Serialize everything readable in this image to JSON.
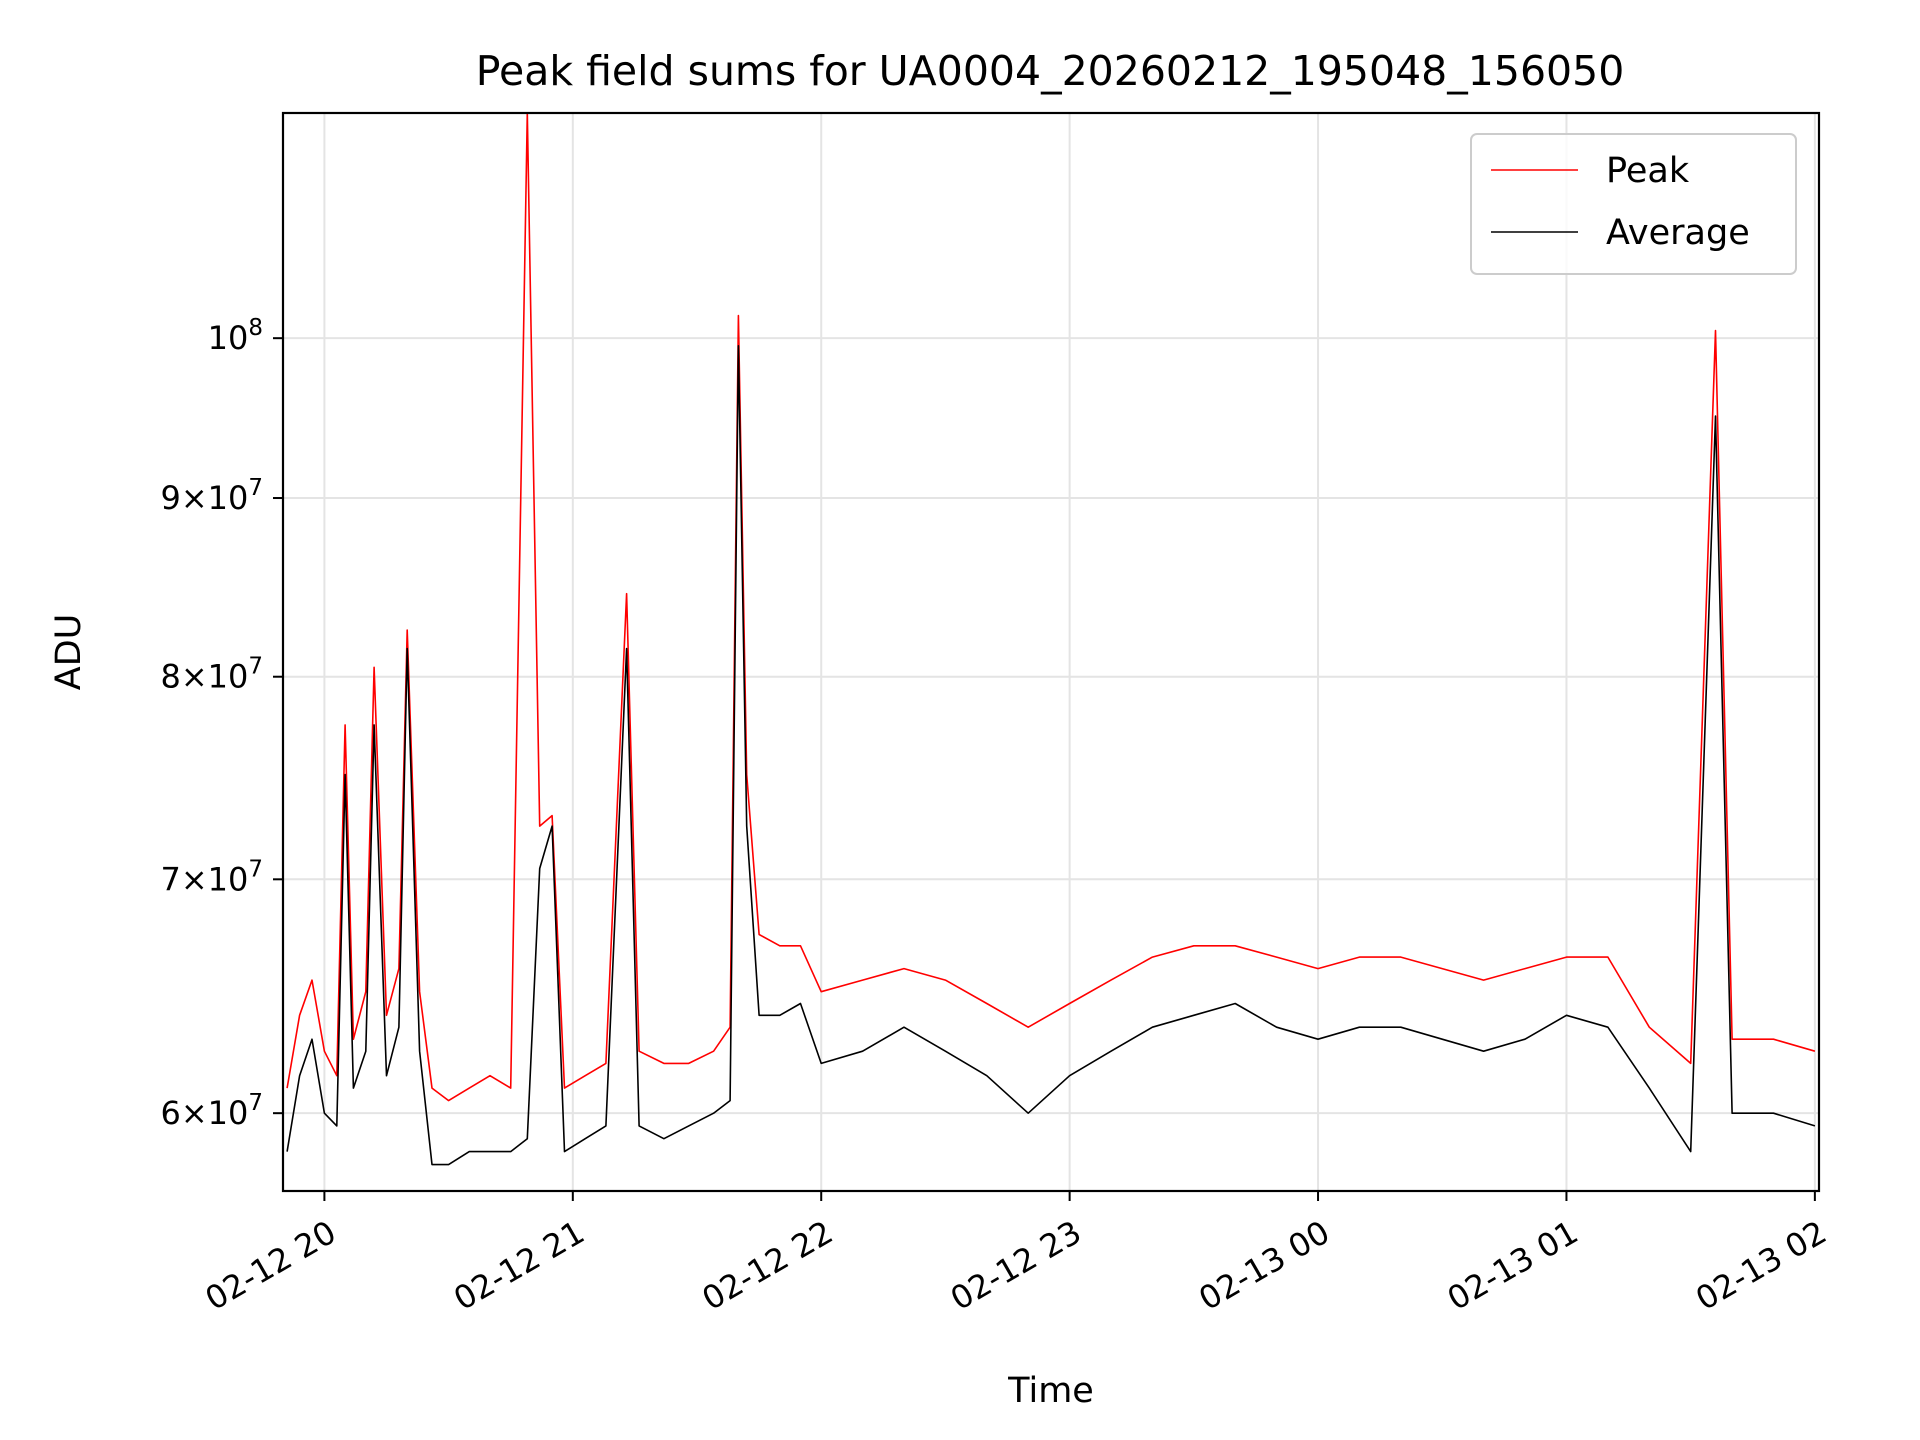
{
  "chart_data": {
    "type": "line",
    "title": "Peak field sums for UA0004_20260212_195048_156050",
    "xlabel": "Time",
    "ylabel": "ADU",
    "x_ticks": [
      "02-12 20",
      "02-12 21",
      "02-12 22",
      "02-12 23",
      "02-13 00",
      "02-13 01",
      "02-13 02"
    ],
    "y_ticks": [
      {
        "value": 60000000,
        "mantissa": "6",
        "exp": "7"
      },
      {
        "value": 70000000,
        "mantissa": "7",
        "exp": "7"
      },
      {
        "value": 80000000,
        "mantissa": "8",
        "exp": "7"
      },
      {
        "value": 90000000,
        "mantissa": "9",
        "exp": "7"
      },
      {
        "value": 100000000,
        "mantissa": "",
        "exp": "8"
      }
    ],
    "x_range": [
      "2026-02-12 19:50",
      "2026-02-13 02:01"
    ],
    "ylim": [
      57000000,
      116000000
    ],
    "y_scale": "log",
    "grid": true,
    "legend_position": "top-right",
    "series": [
      {
        "name": "Peak",
        "color": "#ff0000",
        "points": [
          [
            "2026-02-12 19:51",
            61000000
          ],
          [
            "2026-02-12 19:54",
            64000000
          ],
          [
            "2026-02-12 19:57",
            65500000
          ],
          [
            "2026-02-12 20:00",
            62500000
          ],
          [
            "2026-02-12 20:03",
            61500000
          ],
          [
            "2026-02-12 20:05",
            77500000
          ],
          [
            "2026-02-12 20:07",
            63000000
          ],
          [
            "2026-02-12 20:10",
            65000000
          ],
          [
            "2026-02-12 20:12",
            80500000
          ],
          [
            "2026-02-12 20:15",
            64000000
          ],
          [
            "2026-02-12 20:18",
            66000000
          ],
          [
            "2026-02-12 20:20",
            82500000
          ],
          [
            "2026-02-12 20:23",
            65000000
          ],
          [
            "2026-02-12 20:26",
            61000000
          ],
          [
            "2026-02-12 20:30",
            60500000
          ],
          [
            "2026-02-12 20:35",
            61000000
          ],
          [
            "2026-02-12 20:40",
            61500000
          ],
          [
            "2026-02-12 20:45",
            61000000
          ],
          [
            "2026-02-12 20:49",
            116000000
          ],
          [
            "2026-02-12 20:52",
            72500000
          ],
          [
            "2026-02-12 20:55",
            73000000
          ],
          [
            "2026-02-12 20:58",
            61000000
          ],
          [
            "2026-02-12 21:03",
            61500000
          ],
          [
            "2026-02-12 21:08",
            62000000
          ],
          [
            "2026-02-12 21:13",
            84500000
          ],
          [
            "2026-02-12 21:16",
            62500000
          ],
          [
            "2026-02-12 21:22",
            62000000
          ],
          [
            "2026-02-12 21:28",
            62000000
          ],
          [
            "2026-02-12 21:34",
            62500000
          ],
          [
            "2026-02-12 21:38",
            63500000
          ],
          [
            "2026-02-12 21:40",
            101500000
          ],
          [
            "2026-02-12 21:42",
            75000000
          ],
          [
            "2026-02-12 21:45",
            67500000
          ],
          [
            "2026-02-12 21:50",
            67000000
          ],
          [
            "2026-02-12 21:55",
            67000000
          ],
          [
            "2026-02-12 22:00",
            65000000
          ],
          [
            "2026-02-12 22:10",
            65500000
          ],
          [
            "2026-02-12 22:20",
            66000000
          ],
          [
            "2026-02-12 22:30",
            65500000
          ],
          [
            "2026-02-12 22:40",
            64500000
          ],
          [
            "2026-02-12 22:50",
            63500000
          ],
          [
            "2026-02-12 23:00",
            64500000
          ],
          [
            "2026-02-12 23:10",
            65500000
          ],
          [
            "2026-02-12 23:20",
            66500000
          ],
          [
            "2026-02-12 23:30",
            67000000
          ],
          [
            "2026-02-12 23:40",
            67000000
          ],
          [
            "2026-02-12 23:50",
            66500000
          ],
          [
            "2026-02-13 00:00",
            66000000
          ],
          [
            "2026-02-13 00:10",
            66500000
          ],
          [
            "2026-02-13 00:20",
            66500000
          ],
          [
            "2026-02-13 00:30",
            66000000
          ],
          [
            "2026-02-13 00:40",
            65500000
          ],
          [
            "2026-02-13 00:50",
            66000000
          ],
          [
            "2026-02-13 01:00",
            66500000
          ],
          [
            "2026-02-13 01:10",
            66500000
          ],
          [
            "2026-02-13 01:20",
            63500000
          ],
          [
            "2026-02-13 01:30",
            62000000
          ],
          [
            "2026-02-13 01:36",
            100500000
          ],
          [
            "2026-02-13 01:40",
            63000000
          ],
          [
            "2026-02-13 01:50",
            63000000
          ],
          [
            "2026-02-13 02:00",
            62500000
          ]
        ]
      },
      {
        "name": "Average",
        "color": "#000000",
        "points": [
          [
            "2026-02-12 19:51",
            58500000
          ],
          [
            "2026-02-12 19:54",
            61500000
          ],
          [
            "2026-02-12 19:57",
            63000000
          ],
          [
            "2026-02-12 20:00",
            60000000
          ],
          [
            "2026-02-12 20:03",
            59500000
          ],
          [
            "2026-02-12 20:05",
            75000000
          ],
          [
            "2026-02-12 20:07",
            61000000
          ],
          [
            "2026-02-12 20:10",
            62500000
          ],
          [
            "2026-02-12 20:12",
            77500000
          ],
          [
            "2026-02-12 20:15",
            61500000
          ],
          [
            "2026-02-12 20:18",
            63500000
          ],
          [
            "2026-02-12 20:20",
            81500000
          ],
          [
            "2026-02-12 20:23",
            62500000
          ],
          [
            "2026-02-12 20:26",
            58000000
          ],
          [
            "2026-02-12 20:30",
            58000000
          ],
          [
            "2026-02-12 20:35",
            58500000
          ],
          [
            "2026-02-12 20:40",
            58500000
          ],
          [
            "2026-02-12 20:45",
            58500000
          ],
          [
            "2026-02-12 20:49",
            59000000
          ],
          [
            "2026-02-12 20:52",
            70500000
          ],
          [
            "2026-02-12 20:55",
            72500000
          ],
          [
            "2026-02-12 20:58",
            58500000
          ],
          [
            "2026-02-12 21:03",
            59000000
          ],
          [
            "2026-02-12 21:08",
            59500000
          ],
          [
            "2026-02-12 21:13",
            81500000
          ],
          [
            "2026-02-12 21:16",
            59500000
          ],
          [
            "2026-02-12 21:22",
            59000000
          ],
          [
            "2026-02-12 21:28",
            59500000
          ],
          [
            "2026-02-12 21:34",
            60000000
          ],
          [
            "2026-02-12 21:38",
            60500000
          ],
          [
            "2026-02-12 21:40",
            99500000
          ],
          [
            "2026-02-12 21:42",
            72500000
          ],
          [
            "2026-02-12 21:45",
            64000000
          ],
          [
            "2026-02-12 21:50",
            64000000
          ],
          [
            "2026-02-12 21:55",
            64500000
          ],
          [
            "2026-02-12 22:00",
            62000000
          ],
          [
            "2026-02-12 22:10",
            62500000
          ],
          [
            "2026-02-12 22:20",
            63500000
          ],
          [
            "2026-02-12 22:30",
            62500000
          ],
          [
            "2026-02-12 22:40",
            61500000
          ],
          [
            "2026-02-12 22:50",
            60000000
          ],
          [
            "2026-02-12 23:00",
            61500000
          ],
          [
            "2026-02-12 23:10",
            62500000
          ],
          [
            "2026-02-12 23:20",
            63500000
          ],
          [
            "2026-02-12 23:30",
            64000000
          ],
          [
            "2026-02-12 23:40",
            64500000
          ],
          [
            "2026-02-12 23:50",
            63500000
          ],
          [
            "2026-02-13 00:00",
            63000000
          ],
          [
            "2026-02-13 00:10",
            63500000
          ],
          [
            "2026-02-13 00:20",
            63500000
          ],
          [
            "2026-02-13 00:30",
            63000000
          ],
          [
            "2026-02-13 00:40",
            62500000
          ],
          [
            "2026-02-13 00:50",
            63000000
          ],
          [
            "2026-02-13 01:00",
            64000000
          ],
          [
            "2026-02-13 01:10",
            63500000
          ],
          [
            "2026-02-13 01:20",
            61000000
          ],
          [
            "2026-02-13 01:30",
            58500000
          ],
          [
            "2026-02-13 01:36",
            95000000
          ],
          [
            "2026-02-13 01:40",
            60000000
          ],
          [
            "2026-02-13 01:50",
            60000000
          ],
          [
            "2026-02-13 02:00",
            59500000
          ]
        ]
      }
    ]
  }
}
